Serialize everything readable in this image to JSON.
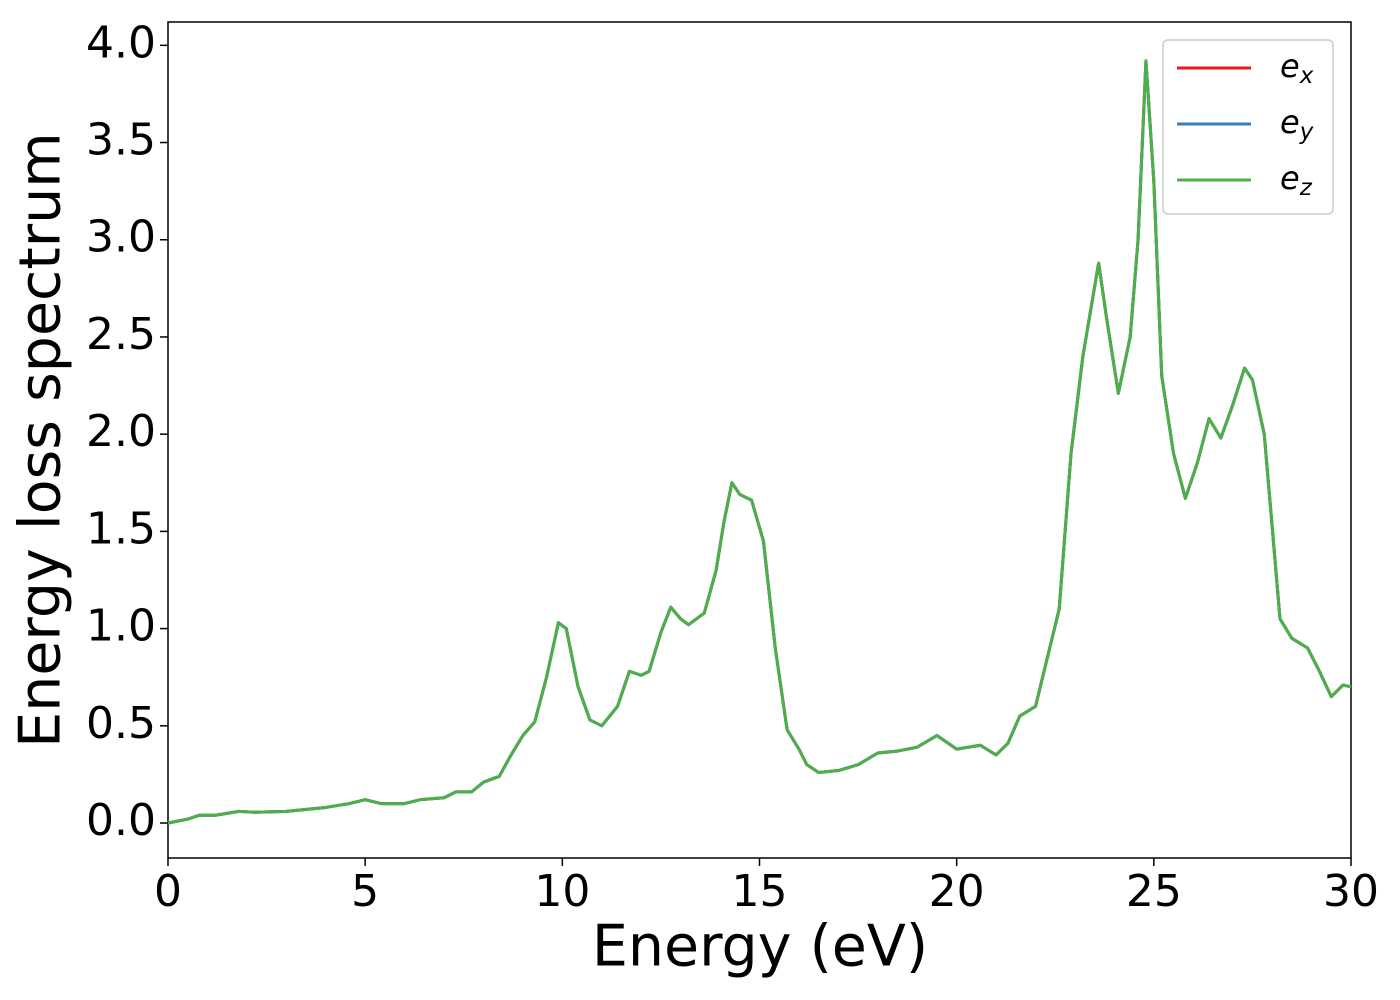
{
  "chart_data": {
    "type": "line",
    "x_label": "Energy (eV)",
    "y_label": "Energy loss spectrum",
    "x": [
      0,
      0.5,
      0.8,
      1.2,
      1.8,
      2.2,
      3,
      4,
      4.6,
      5.0,
      5.4,
      6,
      6.4,
      7,
      7.3,
      7.7,
      8,
      8.4,
      8.7,
      9,
      9.3,
      9.6,
      9.9,
      10.1,
      10.4,
      10.7,
      11,
      11.4,
      11.7,
      12,
      12.2,
      12.5,
      12.75,
      13,
      13.2,
      13.6,
      13.9,
      14.1,
      14.3,
      14.5,
      14.8,
      15.1,
      15.4,
      15.7,
      16,
      16.2,
      16.5,
      17,
      17.5,
      18,
      18.5,
      19,
      19.5,
      20,
      20.6,
      21,
      21.3,
      21.6,
      22,
      22.3,
      22.6,
      22.9,
      23.2,
      23.6,
      23.8,
      24.1,
      24.4,
      24.6,
      24.8,
      25.0,
      25.2,
      25.5,
      25.8,
      26.1,
      26.4,
      26.7,
      27,
      27.3,
      27.5,
      27.8,
      28.2,
      28.5,
      28.9,
      29.2,
      29.5,
      29.8,
      30
    ],
    "series": [
      {
        "name": "ex",
        "color": "#e41a1c",
        "values": [
          0,
          0.02,
          0.04,
          0.04,
          0.06,
          0.055,
          0.06,
          0.08,
          0.1,
          0.12,
          0.1,
          0.1,
          0.12,
          0.13,
          0.16,
          0.16,
          0.21,
          0.24,
          0.35,
          0.45,
          0.52,
          0.75,
          1.03,
          1.0,
          0.7,
          0.53,
          0.5,
          0.6,
          0.78,
          0.76,
          0.78,
          0.98,
          1.11,
          1.05,
          1.02,
          1.08,
          1.3,
          1.55,
          1.75,
          1.69,
          1.66,
          1.45,
          0.9,
          0.48,
          0.38,
          0.3,
          0.26,
          0.27,
          0.3,
          0.36,
          0.37,
          0.39,
          0.45,
          0.38,
          0.4,
          0.35,
          0.41,
          0.55,
          0.6,
          0.85,
          1.1,
          1.9,
          2.4,
          2.88,
          2.6,
          2.21,
          2.5,
          3.0,
          3.92,
          3.3,
          2.3,
          1.9,
          1.67,
          1.85,
          2.08,
          1.98,
          2.15,
          2.34,
          2.28,
          2.0,
          1.05,
          0.95,
          0.9,
          0.78,
          0.65,
          0.71,
          0.7
        ]
      },
      {
        "name": "ey",
        "color": "#377eb8",
        "values": [
          0,
          0.02,
          0.04,
          0.04,
          0.06,
          0.055,
          0.06,
          0.08,
          0.1,
          0.12,
          0.1,
          0.1,
          0.12,
          0.13,
          0.16,
          0.16,
          0.21,
          0.24,
          0.35,
          0.45,
          0.52,
          0.75,
          1.03,
          1.0,
          0.7,
          0.53,
          0.5,
          0.6,
          0.78,
          0.76,
          0.78,
          0.98,
          1.11,
          1.05,
          1.02,
          1.08,
          1.3,
          1.55,
          1.75,
          1.69,
          1.66,
          1.45,
          0.9,
          0.48,
          0.38,
          0.3,
          0.26,
          0.27,
          0.3,
          0.36,
          0.37,
          0.39,
          0.45,
          0.38,
          0.4,
          0.35,
          0.41,
          0.55,
          0.6,
          0.85,
          1.1,
          1.9,
          2.4,
          2.88,
          2.6,
          2.21,
          2.5,
          3.0,
          3.92,
          3.3,
          2.3,
          1.9,
          1.67,
          1.85,
          2.08,
          1.98,
          2.15,
          2.34,
          2.28,
          2.0,
          1.05,
          0.95,
          0.9,
          0.78,
          0.65,
          0.71,
          0.7
        ]
      },
      {
        "name": "ez",
        "color": "#4daf4a",
        "values": [
          0,
          0.02,
          0.04,
          0.04,
          0.06,
          0.055,
          0.06,
          0.08,
          0.1,
          0.12,
          0.1,
          0.1,
          0.12,
          0.13,
          0.16,
          0.16,
          0.21,
          0.24,
          0.35,
          0.45,
          0.52,
          0.75,
          1.03,
          1.0,
          0.7,
          0.53,
          0.5,
          0.6,
          0.78,
          0.76,
          0.78,
          0.98,
          1.11,
          1.05,
          1.02,
          1.08,
          1.3,
          1.55,
          1.75,
          1.69,
          1.66,
          1.45,
          0.9,
          0.48,
          0.38,
          0.3,
          0.26,
          0.27,
          0.3,
          0.36,
          0.37,
          0.39,
          0.45,
          0.38,
          0.4,
          0.35,
          0.41,
          0.55,
          0.6,
          0.85,
          1.1,
          1.9,
          2.4,
          2.88,
          2.6,
          2.21,
          2.5,
          3.0,
          3.92,
          3.3,
          2.3,
          1.9,
          1.67,
          1.85,
          2.08,
          1.98,
          2.15,
          2.34,
          2.28,
          2.0,
          1.05,
          0.95,
          0.9,
          0.78,
          0.65,
          0.71,
          0.7
        ]
      }
    ],
    "xlim": [
      0,
      30
    ],
    "xticks": [
      0,
      5,
      10,
      15,
      20,
      25,
      30
    ],
    "ylim": [
      -0.18,
      4.12
    ],
    "yticks": [
      {
        "value": 0,
        "label": "0.0"
      },
      0.5,
      {
        "value": 1,
        "label": "1.0"
      },
      1.5,
      {
        "value": 2,
        "label": "2.0"
      },
      2.5,
      {
        "value": 3,
        "label": "3.0"
      },
      3.5,
      {
        "value": 4,
        "label": "4.0"
      }
    ],
    "legend": "upper right"
  }
}
